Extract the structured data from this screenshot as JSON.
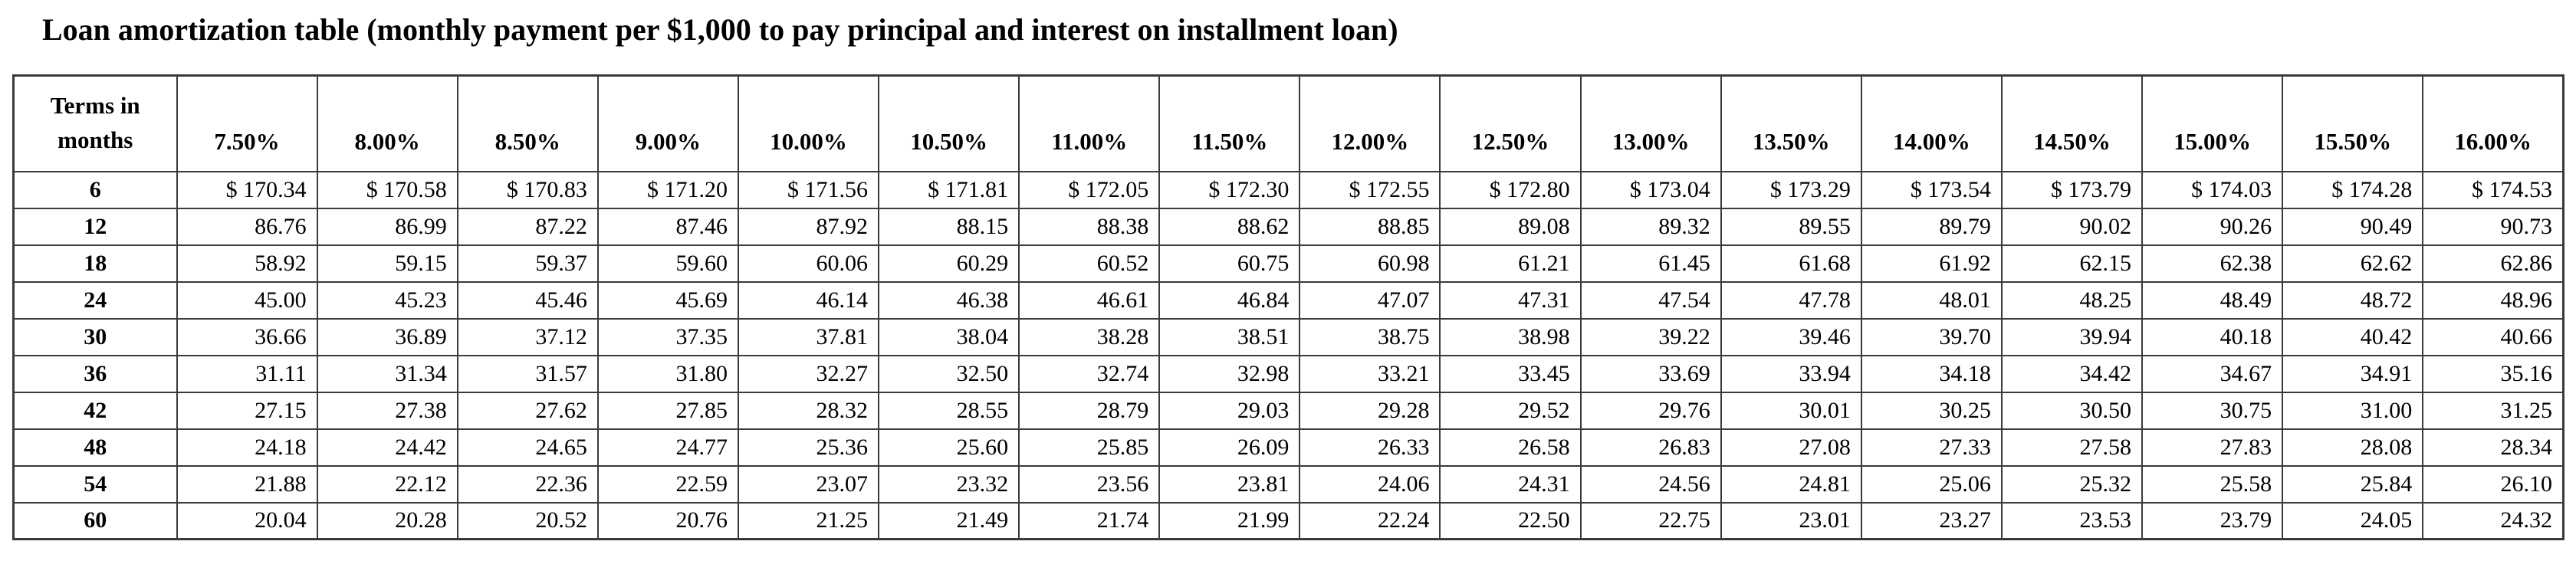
{
  "title": "Loan amortization table (monthly payment per $1,000 to pay principal and interest on installment loan)",
  "table": {
    "corner_header": "Terms in months",
    "rate_headers": [
      "7.50%",
      "8.00%",
      "8.50%",
      "9.00%",
      "10.00%",
      "10.50%",
      "11.00%",
      "11.50%",
      "12.00%",
      "12.50%",
      "13.00%",
      "13.50%",
      "14.00%",
      "14.50%",
      "15.00%",
      "15.50%",
      "16.00%"
    ],
    "rows": [
      {
        "term": "6",
        "values": [
          "$ 170.34",
          "$ 170.58",
          "$ 170.83",
          "$ 171.20",
          "$ 171.56",
          "$ 171.81",
          "$ 172.05",
          "$ 172.30",
          "$ 172.55",
          "$ 172.80",
          "$ 173.04",
          "$ 173.29",
          "$ 173.54",
          "$ 173.79",
          "$ 174.03",
          "$ 174.28",
          "$ 174.53"
        ]
      },
      {
        "term": "12",
        "values": [
          "86.76",
          "86.99",
          "87.22",
          "87.46",
          "87.92",
          "88.15",
          "88.38",
          "88.62",
          "88.85",
          "89.08",
          "89.32",
          "89.55",
          "89.79",
          "90.02",
          "90.26",
          "90.49",
          "90.73"
        ]
      },
      {
        "term": "18",
        "values": [
          "58.92",
          "59.15",
          "59.37",
          "59.60",
          "60.06",
          "60.29",
          "60.52",
          "60.75",
          "60.98",
          "61.21",
          "61.45",
          "61.68",
          "61.92",
          "62.15",
          "62.38",
          "62.62",
          "62.86"
        ]
      },
      {
        "term": "24",
        "values": [
          "45.00",
          "45.23",
          "45.46",
          "45.69",
          "46.14",
          "46.38",
          "46.61",
          "46.84",
          "47.07",
          "47.31",
          "47.54",
          "47.78",
          "48.01",
          "48.25",
          "48.49",
          "48.72",
          "48.96"
        ]
      },
      {
        "term": "30",
        "values": [
          "36.66",
          "36.89",
          "37.12",
          "37.35",
          "37.81",
          "38.04",
          "38.28",
          "38.51",
          "38.75",
          "38.98",
          "39.22",
          "39.46",
          "39.70",
          "39.94",
          "40.18",
          "40.42",
          "40.66"
        ]
      },
      {
        "term": "36",
        "values": [
          "31.11",
          "31.34",
          "31.57",
          "31.80",
          "32.27",
          "32.50",
          "32.74",
          "32.98",
          "33.21",
          "33.45",
          "33.69",
          "33.94",
          "34.18",
          "34.42",
          "34.67",
          "34.91",
          "35.16"
        ]
      },
      {
        "term": "42",
        "values": [
          "27.15",
          "27.38",
          "27.62",
          "27.85",
          "28.32",
          "28.55",
          "28.79",
          "29.03",
          "29.28",
          "29.52",
          "29.76",
          "30.01",
          "30.25",
          "30.50",
          "30.75",
          "31.00",
          "31.25"
        ]
      },
      {
        "term": "48",
        "values": [
          "24.18",
          "24.42",
          "24.65",
          "24.77",
          "25.36",
          "25.60",
          "25.85",
          "26.09",
          "26.33",
          "26.58",
          "26.83",
          "27.08",
          "27.33",
          "27.58",
          "27.83",
          "28.08",
          "28.34"
        ]
      },
      {
        "term": "54",
        "values": [
          "21.88",
          "22.12",
          "22.36",
          "22.59",
          "23.07",
          "23.32",
          "23.56",
          "23.81",
          "24.06",
          "24.31",
          "24.56",
          "24.81",
          "25.06",
          "25.32",
          "25.58",
          "25.84",
          "26.10"
        ]
      },
      {
        "term": "60",
        "values": [
          "20.04",
          "20.28",
          "20.52",
          "20.76",
          "21.25",
          "21.49",
          "21.74",
          "21.99",
          "22.24",
          "22.50",
          "22.75",
          "23.01",
          "23.27",
          "23.53",
          "23.79",
          "24.05",
          "24.32"
        ]
      }
    ]
  },
  "chart_data": {
    "type": "table",
    "title": "Loan amortization table (monthly payment per $1,000 to pay principal and interest on installment loan)",
    "columns": [
      "Terms in months",
      "7.50%",
      "8.00%",
      "8.50%",
      "9.00%",
      "10.00%",
      "10.50%",
      "11.00%",
      "11.50%",
      "12.00%",
      "12.50%",
      "13.00%",
      "13.50%",
      "14.00%",
      "14.50%",
      "15.00%",
      "15.50%",
      "16.00%"
    ],
    "rows": [
      [
        6,
        170.34,
        170.58,
        170.83,
        171.2,
        171.56,
        171.81,
        172.05,
        172.3,
        172.55,
        172.8,
        173.04,
        173.29,
        173.54,
        173.79,
        174.03,
        174.28,
        174.53
      ],
      [
        12,
        86.76,
        86.99,
        87.22,
        87.46,
        87.92,
        88.15,
        88.38,
        88.62,
        88.85,
        89.08,
        89.32,
        89.55,
        89.79,
        90.02,
        90.26,
        90.49,
        90.73
      ],
      [
        18,
        58.92,
        59.15,
        59.37,
        59.6,
        60.06,
        60.29,
        60.52,
        60.75,
        60.98,
        61.21,
        61.45,
        61.68,
        61.92,
        62.15,
        62.38,
        62.62,
        62.86
      ],
      [
        24,
        45.0,
        45.23,
        45.46,
        45.69,
        46.14,
        46.38,
        46.61,
        46.84,
        47.07,
        47.31,
        47.54,
        47.78,
        48.01,
        48.25,
        48.49,
        48.72,
        48.96
      ],
      [
        30,
        36.66,
        36.89,
        37.12,
        37.35,
        37.81,
        38.04,
        38.28,
        38.51,
        38.75,
        38.98,
        39.22,
        39.46,
        39.7,
        39.94,
        40.18,
        40.42,
        40.66
      ],
      [
        36,
        31.11,
        31.34,
        31.57,
        31.8,
        32.27,
        32.5,
        32.74,
        32.98,
        33.21,
        33.45,
        33.69,
        33.94,
        34.18,
        34.42,
        34.67,
        34.91,
        35.16
      ],
      [
        42,
        27.15,
        27.38,
        27.62,
        27.85,
        28.32,
        28.55,
        28.79,
        29.03,
        29.28,
        29.52,
        29.76,
        30.01,
        30.25,
        30.5,
        30.75,
        31.0,
        31.25
      ],
      [
        48,
        24.18,
        24.42,
        24.65,
        24.77,
        25.36,
        25.6,
        25.85,
        26.09,
        26.33,
        26.58,
        26.83,
        27.08,
        27.33,
        27.58,
        27.83,
        28.08,
        28.34
      ],
      [
        54,
        21.88,
        22.12,
        22.36,
        22.59,
        23.07,
        23.32,
        23.56,
        23.81,
        24.06,
        24.31,
        24.56,
        24.81,
        25.06,
        25.32,
        25.58,
        25.84,
        26.1
      ],
      [
        60,
        20.04,
        20.28,
        20.52,
        20.76,
        21.25,
        21.49,
        21.74,
        21.99,
        22.24,
        22.5,
        22.75,
        23.01,
        23.27,
        23.53,
        23.79,
        24.05,
        24.32
      ]
    ]
  }
}
